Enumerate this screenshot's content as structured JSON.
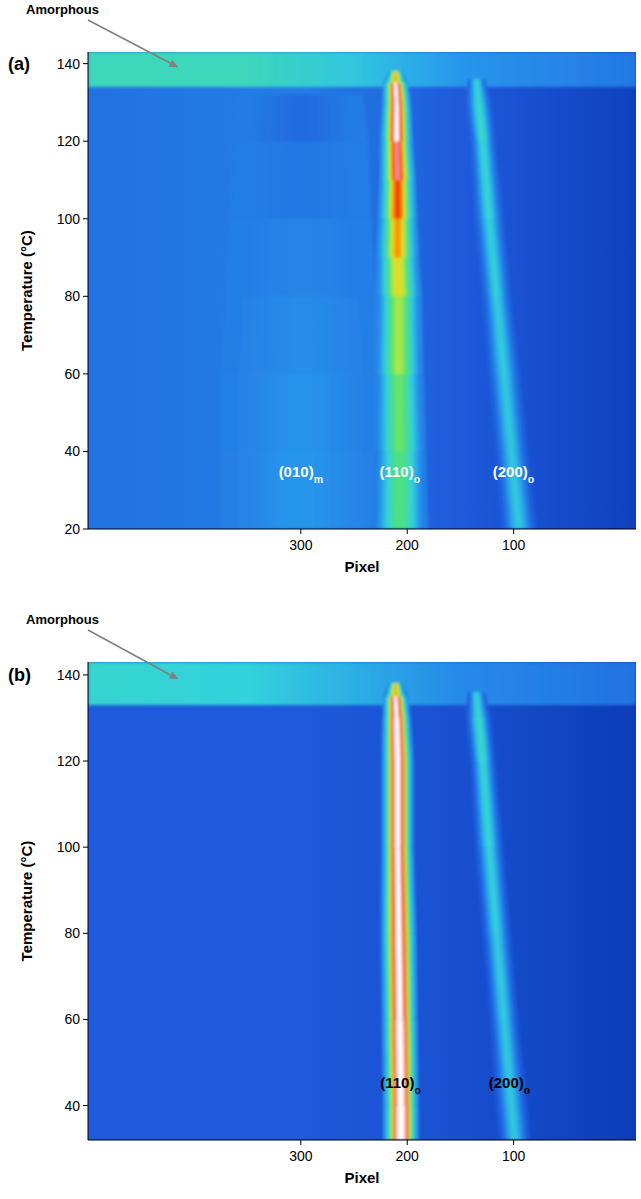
{
  "chart_data": [
    {
      "type": "heatmap",
      "panel": "(a)",
      "xlabel": "Pixel",
      "ylabel": "Temperature (°C)",
      "xlim": [
        500,
        -15
      ],
      "ylim": [
        20,
        143
      ],
      "xticks": [
        300,
        200,
        100
      ],
      "yticks": [
        20,
        40,
        60,
        80,
        100,
        120,
        140
      ],
      "background": {
        "x": [
          500,
          300,
          150,
          -15
        ],
        "intensity": [
          0.24,
          0.26,
          0.2,
          0.15
        ]
      },
      "halo": {
        "temperature": [
          134,
          143
        ],
        "x": [
          500,
          350,
          250,
          150,
          -15
        ],
        "intensity": [
          0.45,
          0.45,
          0.38,
          0.3,
          0.25
        ]
      },
      "series": [
        {
          "name": "(010)m",
          "color": "#ffffff",
          "values": [
            20,
            40,
            60,
            80,
            100,
            120,
            132
          ],
          "x": [
            300,
            300,
            300,
            300,
            300,
            300,
            300
          ],
          "width": [
            45,
            45,
            45,
            42,
            40,
            38,
            35
          ],
          "intensity": [
            0.3,
            0.3,
            0.29,
            0.28,
            0.26,
            0.24,
            0.22
          ]
        },
        {
          "name": "(110)o",
          "color": "#ffffff",
          "values": [
            20,
            40,
            60,
            80,
            90,
            100,
            110,
            120,
            130,
            135,
            138
          ],
          "x": [
            207,
            207,
            208,
            208,
            209,
            209,
            209,
            210,
            210,
            211,
            211
          ],
          "width": [
            16,
            15,
            14,
            13,
            12,
            11,
            10,
            9,
            8,
            7,
            4
          ],
          "intensity": [
            0.52,
            0.55,
            0.6,
            0.68,
            0.76,
            0.85,
            0.95,
            1.05,
            1.1,
            1.0,
            0.55
          ]
        },
        {
          "name": "(200)o",
          "color": "#ffffff",
          "values": [
            20,
            40,
            60,
            80,
            100,
            120,
            130,
            136
          ],
          "x": [
            95,
            102,
            109,
            116,
            123,
            129,
            133,
            135
          ],
          "width": [
            10,
            9,
            9,
            8,
            8,
            7,
            7,
            5
          ],
          "intensity": [
            0.38,
            0.38,
            0.38,
            0.39,
            0.4,
            0.42,
            0.44,
            0.38
          ]
        }
      ],
      "annotations": [
        {
          "text": "Amorphous",
          "x": 415,
          "y": 139
        }
      ]
    },
    {
      "type": "heatmap",
      "panel": "(b)",
      "xlabel": "Pixel",
      "ylabel": "Temperature (°C)",
      "xlim": [
        500,
        -15
      ],
      "ylim": [
        32,
        143
      ],
      "xticks": [
        300,
        200,
        100
      ],
      "yticks": [
        40,
        60,
        80,
        100,
        120,
        140
      ],
      "background": {
        "x": [
          500,
          300,
          150,
          -15
        ],
        "intensity": [
          0.2,
          0.2,
          0.18,
          0.14
        ]
      },
      "halo": {
        "temperature": [
          133,
          143
        ],
        "x": [
          500,
          350,
          250,
          150,
          -15
        ],
        "intensity": [
          0.42,
          0.4,
          0.34,
          0.28,
          0.24
        ]
      },
      "series": [
        {
          "name": "(110)o",
          "color": "#000000",
          "values": [
            32,
            40,
            60,
            80,
            100,
            120,
            130,
            135,
            138
          ],
          "x": [
            206,
            206,
            207,
            208,
            209,
            209,
            210,
            211,
            211
          ],
          "width": [
            10,
            10,
            10,
            10,
            9,
            9,
            8,
            7,
            4
          ],
          "intensity": [
            1.15,
            1.15,
            1.12,
            1.1,
            1.1,
            1.12,
            1.12,
            1.0,
            0.55
          ]
        },
        {
          "name": "(200)o",
          "color": "#000000",
          "values": [
            32,
            40,
            60,
            80,
            100,
            120,
            130,
            136
          ],
          "x": [
            99,
            102,
            109,
            116,
            123,
            129,
            133,
            135
          ],
          "width": [
            9,
            9,
            8,
            8,
            8,
            7,
            7,
            5
          ],
          "intensity": [
            0.38,
            0.38,
            0.38,
            0.39,
            0.4,
            0.42,
            0.44,
            0.38
          ]
        }
      ],
      "annotations": [
        {
          "text": "Amorphous",
          "x": 415,
          "y": 139
        }
      ]
    }
  ]
}
